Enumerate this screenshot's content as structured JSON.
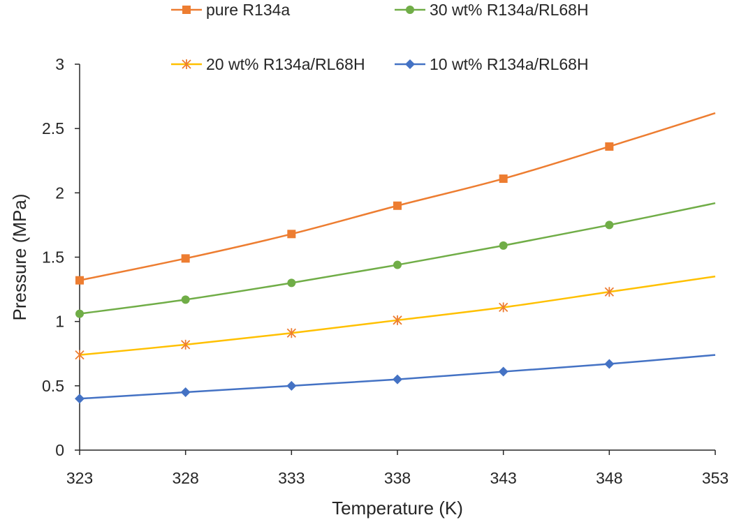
{
  "chart_data": {
    "type": "line",
    "title": "",
    "xlabel": "Temperature (K)",
    "ylabel": "Pressure (MPa)",
    "xlim": [
      323,
      353
    ],
    "ylim": [
      0,
      3
    ],
    "x_ticks": [
      "323",
      "328",
      "333",
      "338",
      "343",
      "348",
      "353"
    ],
    "y_ticks": [
      "0",
      "0.5",
      "1",
      "1.5",
      "2",
      "2.5",
      "3"
    ],
    "x": [
      323,
      328,
      333,
      338,
      343,
      348
    ],
    "grid": false,
    "legend_position": "top",
    "series": [
      {
        "name": "pure R134a",
        "color": "#ED7D31",
        "marker": "square",
        "values": [
          1.32,
          1.49,
          1.68,
          1.9,
          2.11,
          2.36
        ],
        "curve_end": {
          "x": 353,
          "y": 2.62
        }
      },
      {
        "name": "30 wt% R134a/RL68H",
        "color": "#70AD47",
        "marker": "circle",
        "values": [
          1.06,
          1.17,
          1.3,
          1.44,
          1.59,
          1.75
        ],
        "curve_end": {
          "x": 353,
          "y": 1.92
        }
      },
      {
        "name": "20 wt% R134a/RL68H",
        "color": "#FFC000",
        "marker_color": "#ED7D31",
        "marker": "star",
        "values": [
          0.74,
          0.82,
          0.91,
          1.01,
          1.11,
          1.23
        ],
        "curve_end": {
          "x": 353,
          "y": 1.35
        }
      },
      {
        "name": "10 wt% R134a/RL68H",
        "color": "#4472C4",
        "marker": "diamond",
        "values": [
          0.4,
          0.45,
          0.5,
          0.55,
          0.61,
          0.67
        ],
        "curve_end": {
          "x": 353,
          "y": 0.74
        }
      }
    ]
  }
}
